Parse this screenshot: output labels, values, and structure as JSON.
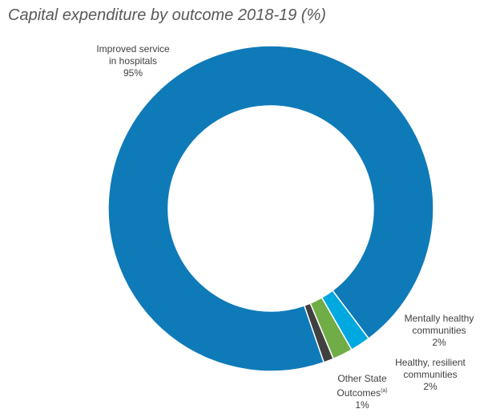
{
  "chart_data": {
    "type": "pie",
    "title": "Capital expenditure by outcome 2018-19 (%)",
    "donut": true,
    "categories": [
      "Improved service in hospitals",
      "Mentally healthy communities",
      "Healthy, resilient communities",
      "Other State Outcomes"
    ],
    "values": [
      95,
      2,
      2,
      1
    ],
    "value_labels": [
      "95%",
      "2%",
      "2%",
      "1%"
    ],
    "colors": [
      "#0f7ab8",
      "#00a8e0",
      "#70ad47",
      "#404040"
    ],
    "labels": [
      {
        "lines": [
          "Improved service",
          "in hospitals"
        ],
        "value": "95%"
      },
      {
        "lines": [
          "Mentally healthy",
          "communities"
        ],
        "value": "2%"
      },
      {
        "lines": [
          "Healthy, resilient",
          "communities"
        ],
        "value": "2%"
      },
      {
        "lines": [
          "Other State",
          "Outcomes"
        ],
        "superscript": "(a)",
        "value": "1%"
      }
    ]
  }
}
